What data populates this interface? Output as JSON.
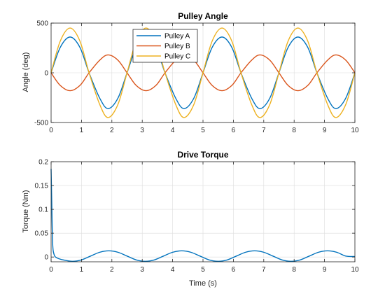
{
  "chart_data": [
    {
      "type": "line",
      "title": "Pulley Angle",
      "xlabel": "",
      "ylabel": "Angle (deg)",
      "xlim": [
        0,
        10
      ],
      "ylim": [
        -500,
        500
      ],
      "xticks": [
        0,
        1,
        2,
        3,
        4,
        5,
        6,
        7,
        8,
        9,
        10
      ],
      "yticks": [
        -500,
        0,
        500
      ],
      "grid": true,
      "legend": "top-center",
      "series": [
        {
          "name": "Pulley A",
          "color": "#0072BD",
          "x": [
            0,
            0.3,
            0.625,
            0.95,
            1.25,
            1.6,
            1.875,
            2.2,
            2.5,
            2.8,
            3.125,
            3.45,
            3.75,
            4.1,
            4.375,
            4.7,
            5.0,
            5.3,
            5.625,
            5.95,
            6.25,
            6.6,
            6.875,
            7.2,
            7.5,
            7.8,
            8.125,
            8.45,
            8.75,
            9.1,
            9.375,
            9.7,
            10.0
          ],
          "y": [
            0,
            255,
            360,
            255,
            0,
            -255,
            -360,
            -255,
            0,
            255,
            360,
            255,
            0,
            -255,
            -360,
            -255,
            0,
            255,
            360,
            255,
            0,
            -255,
            -360,
            -255,
            0,
            255,
            360,
            255,
            0,
            -255,
            -360,
            -255,
            0
          ]
        },
        {
          "name": "Pulley B",
          "color": "#D95319",
          "x": [
            0,
            0.3,
            0.625,
            0.95,
            1.25,
            1.6,
            1.875,
            2.2,
            2.5,
            2.8,
            3.125,
            3.45,
            3.75,
            4.1,
            4.375,
            4.7,
            5.0,
            5.3,
            5.625,
            5.95,
            6.25,
            6.6,
            6.875,
            7.2,
            7.5,
            7.8,
            8.125,
            8.45,
            8.75,
            9.1,
            9.375,
            9.7,
            10.0
          ],
          "y": [
            0,
            -127,
            -180,
            -127,
            0,
            127,
            180,
            127,
            0,
            -127,
            -180,
            -127,
            0,
            127,
            180,
            127,
            0,
            -127,
            -180,
            -127,
            0,
            127,
            180,
            127,
            0,
            -127,
            -180,
            -127,
            0,
            127,
            180,
            127,
            0
          ]
        },
        {
          "name": "Pulley C",
          "color": "#EDB120",
          "x": [
            0,
            0.3,
            0.625,
            0.95,
            1.25,
            1.6,
            1.875,
            2.2,
            2.5,
            2.8,
            3.125,
            3.45,
            3.75,
            4.1,
            4.375,
            4.7,
            5.0,
            5.3,
            5.625,
            5.95,
            6.25,
            6.6,
            6.875,
            7.2,
            7.5,
            7.8,
            8.125,
            8.45,
            8.75,
            9.1,
            9.375,
            9.7,
            10.0
          ],
          "y": [
            0,
            318,
            450,
            318,
            0,
            -318,
            -450,
            -318,
            0,
            318,
            450,
            318,
            0,
            -318,
            -450,
            -318,
            0,
            318,
            450,
            318,
            0,
            -318,
            -450,
            -318,
            0,
            318,
            450,
            318,
            0,
            -318,
            -450,
            -318,
            0
          ]
        }
      ]
    },
    {
      "type": "line",
      "title": "Drive Torque",
      "xlabel": "Time (s)",
      "ylabel": "Torque (Nm)",
      "xlim": [
        0,
        10
      ],
      "ylim": [
        -0.01,
        0.2
      ],
      "xticks": [
        0,
        1,
        2,
        3,
        4,
        5,
        6,
        7,
        8,
        9,
        10
      ],
      "yticks": [
        0,
        0.05,
        0.1,
        0.15,
        0.2
      ],
      "grid": true,
      "series": [
        {
          "name": "",
          "color": "#0072BD",
          "x": [
            0,
            0.02,
            0.05,
            0.1,
            0.2,
            0.4,
            0.7,
            1.0,
            1.3,
            1.6,
            1.9,
            2.2,
            2.5,
            2.8,
            3.1,
            3.4,
            3.7,
            4.0,
            4.3,
            4.6,
            4.9,
            5.2,
            5.5,
            5.8,
            6.1,
            6.4,
            6.7,
            7.0,
            7.3,
            7.6,
            7.9,
            8.2,
            8.5,
            8.8,
            9.1,
            9.4,
            9.7,
            10.0
          ],
          "y": [
            0.185,
            0.12,
            0.03,
            0.005,
            -0.002,
            -0.006,
            -0.009,
            -0.006,
            0.002,
            0.01,
            0.013,
            0.01,
            0.002,
            -0.006,
            -0.009,
            -0.006,
            0.002,
            0.01,
            0.013,
            0.01,
            0.002,
            -0.006,
            -0.009,
            -0.006,
            0.002,
            0.01,
            0.013,
            0.01,
            0.002,
            -0.006,
            -0.009,
            -0.006,
            0.002,
            0.01,
            0.013,
            0.01,
            0.002,
            0.001
          ]
        }
      ]
    }
  ]
}
